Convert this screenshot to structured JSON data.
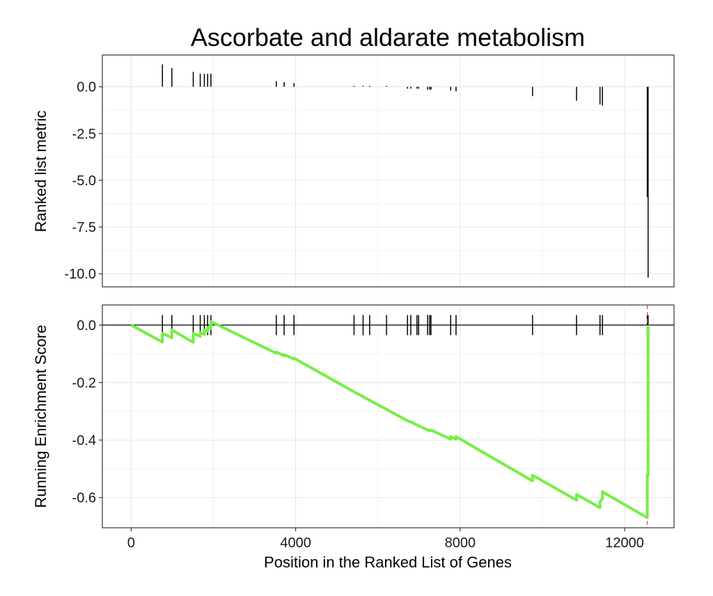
{
  "chart_data": {
    "type": "line",
    "title": "Ascorbate and aldarate metabolism",
    "xlabel": "Position in the Ranked List of Genes",
    "xlim": [
      -700,
      13200
    ],
    "xticks": [
      0,
      4000,
      8000,
      12000
    ],
    "xtick_labels": [
      "0",
      "4000",
      "8000",
      "12000"
    ],
    "hit_positions": [
      760,
      990,
      1510,
      1680,
      1780,
      1860,
      1940,
      3530,
      3720,
      3960,
      5420,
      5640,
      5800,
      6210,
      6720,
      6800,
      6950,
      6990,
      7210,
      7260,
      7290,
      7770,
      7900,
      9760,
      10830,
      11400,
      11460,
      12550,
      12570
    ],
    "panels": [
      {
        "name": "ranked-metric",
        "ylabel": "Ranked list metric",
        "ylim": [
          -10.7,
          1.7
        ],
        "yticks": [
          0.0,
          -2.5,
          -5.0,
          -7.5,
          -10.0
        ],
        "ytick_labels": [
          "0.0",
          "-2.5",
          "-5.0",
          "-7.5",
          "-10.0"
        ],
        "metric_values": [
          1.2,
          1.0,
          0.8,
          0.7,
          0.7,
          0.7,
          0.7,
          0.3,
          0.25,
          0.2,
          0.05,
          0.05,
          0.05,
          0.05,
          -0.1,
          -0.1,
          -0.1,
          -0.1,
          -0.15,
          -0.15,
          -0.15,
          -0.2,
          -0.25,
          -0.5,
          -0.75,
          -0.95,
          -1.0,
          -5.9,
          -10.2
        ]
      },
      {
        "name": "enrichment-score",
        "ylabel": "Running Enrichment Score",
        "ylim": [
          -0.705,
          0.07
        ],
        "yticks": [
          0.0,
          -0.2,
          -0.4,
          -0.6
        ],
        "ytick_labels": [
          "0.0",
          "-0.2",
          "-0.4",
          "-0.6"
        ],
        "series": [
          {
            "name": "Running Enrichment Score",
            "color": "#77ee44",
            "x": [
              0,
              760,
              760,
              990,
              990,
              1510,
              1510,
              1680,
              1680,
              1780,
              1780,
              1860,
              1860,
              1940,
              1940,
              3530,
              3530,
              3720,
              3720,
              3960,
              3960,
              5420,
              5420,
              5640,
              5640,
              5800,
              5800,
              6210,
              6210,
              6720,
              6720,
              6800,
              6800,
              6950,
              6950,
              6990,
              6990,
              7210,
              7210,
              7260,
              7260,
              7290,
              7290,
              7770,
              7770,
              7900,
              7900,
              9760,
              9760,
              10830,
              10830,
              11400,
              11400,
              11460,
              11460,
              12550,
              12550,
              12570,
              12570
            ],
            "y": [
              0.0,
              -0.059,
              -0.029,
              -0.044,
              -0.017,
              -0.06,
              -0.029,
              -0.039,
              -0.025,
              -0.033,
              -0.017,
              -0.022,
              -0.009,
              -0.012,
              0.012,
              -0.098,
              -0.094,
              -0.107,
              -0.103,
              -0.118,
              -0.115,
              -0.232,
              -0.232,
              -0.249,
              -0.249,
              -0.262,
              -0.262,
              -0.293,
              -0.293,
              -0.333,
              -0.333,
              -0.337,
              -0.337,
              -0.347,
              -0.347,
              -0.35,
              -0.35,
              -0.365,
              -0.365,
              -0.367,
              -0.365,
              -0.367,
              -0.365,
              -0.397,
              -0.388,
              -0.397,
              -0.388,
              -0.542,
              -0.522,
              -0.609,
              -0.589,
              -0.635,
              -0.615,
              -0.602,
              -0.58,
              -0.67,
              -0.519,
              -0.521,
              0.0
            ]
          }
        ],
        "max_deviation_x": 12550
      }
    ]
  }
}
